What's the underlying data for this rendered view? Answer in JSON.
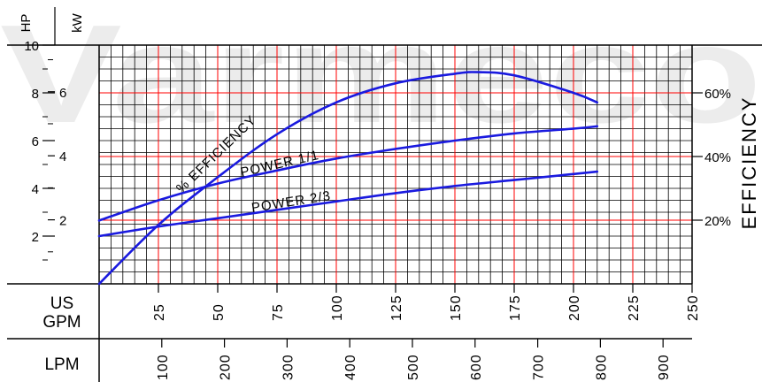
{
  "chart_data": {
    "type": "line",
    "title": "",
    "watermark": "Varmeco",
    "x_axis": {
      "label": "US GPM",
      "min": 0,
      "max": 250,
      "ticks": [
        "25",
        "50",
        "75",
        "100",
        "125",
        "150",
        "175",
        "200",
        "225",
        "250"
      ]
    },
    "x2_axis": {
      "label": "LPM",
      "ticks": [
        "100",
        "200",
        "300",
        "400",
        "500",
        "600",
        "700",
        "800",
        "900"
      ]
    },
    "y_left_hp": {
      "label": "HP",
      "min": 0,
      "max": 10,
      "ticks": [
        "2",
        "4",
        "6",
        "8",
        "10"
      ]
    },
    "y_left_kw": {
      "label": "kW",
      "ticks": [
        "2",
        "4",
        "6"
      ]
    },
    "y_right": {
      "label": "EFFICIENCY",
      "min": 0,
      "max": 75,
      "unit": "%",
      "ticks": [
        "20%",
        "40%",
        "60%"
      ]
    },
    "grid": true,
    "series": [
      {
        "name": "% EFFICIENCY",
        "axis": "y_right",
        "color": "#1a1adf",
        "x": [
          0,
          25,
          50,
          75,
          100,
          125,
          150,
          160,
          175,
          200,
          210
        ],
        "y": [
          0,
          18.5,
          33.5,
          47,
          57,
          63,
          66,
          66.5,
          65.5,
          60,
          57
        ]
      },
      {
        "name": "POWER 1/1",
        "axis": "y_left_hp",
        "color": "#1a1adf",
        "x": [
          0,
          25,
          50,
          75,
          100,
          125,
          150,
          175,
          200,
          210
        ],
        "y": [
          2.65,
          3.5,
          4.2,
          4.75,
          5.25,
          5.65,
          6.0,
          6.3,
          6.5,
          6.6
        ]
      },
      {
        "name": "POWER 2/3",
        "axis": "y_left_hp",
        "color": "#1a1adf",
        "x": [
          0,
          25,
          50,
          75,
          100,
          125,
          150,
          175,
          200,
          210
        ],
        "y": [
          2.0,
          2.4,
          2.75,
          3.1,
          3.45,
          3.8,
          4.1,
          4.35,
          4.6,
          4.7
        ]
      }
    ],
    "colors": {
      "grid_minor": "#000000",
      "grid_major": "#ff0000",
      "curve": "#1a1adf"
    }
  }
}
